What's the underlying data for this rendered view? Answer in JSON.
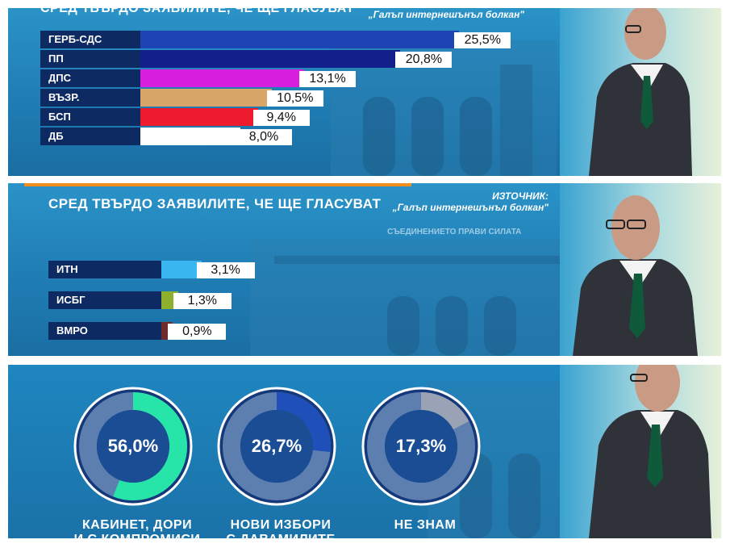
{
  "panel1": {
    "header": "СРЕД ТВЪРДО ЗАЯВИЛИТЕ, ЧЕ ЩЕ ГЛАСУВАТ",
    "source": "„Галъп интернешънъл болкан\""
  },
  "panel2": {
    "header": "СРЕД ТВЪРДО ЗАЯВИЛИТЕ, ЧЕ ЩЕ ГЛАСУВАТ",
    "source_label": "ИЗТОЧНИК:",
    "source": "„Галъп интернешънъл болкан\"",
    "banner": "СЪЕДИНЕНИЕТО ПРАВИ СИЛАТА"
  },
  "panel3": {
    "items": [
      {
        "value_label": "56,0%",
        "caption": "КАБИНЕТ, ДОРИ",
        "caption2": "И С КОМПРОМИСИ"
      },
      {
        "value_label": "26,7%",
        "caption": "НОВИ ИЗБОРИ",
        "caption2": "С ДАВАМИЛИТЕ"
      },
      {
        "value_label": "17,3%",
        "caption": "НЕ ЗНАМ",
        "caption2": ""
      }
    ]
  },
  "chart_data": [
    {
      "type": "bar",
      "categories": [
        "ГЕРБ-СДС",
        "ПП",
        "ДПС",
        "ВЪЗР.",
        "БСП",
        "ДБ"
      ],
      "values": [
        25.5,
        20.8,
        13.1,
        10.5,
        9.4,
        8.0
      ],
      "value_labels": [
        "25,5%",
        "20,8%",
        "13,1%",
        "10,5%",
        "9,4%",
        "8,0%"
      ],
      "colors": [
        "#1c44b4",
        "#13208c",
        "#d81fe0",
        "#d9a66a",
        "#ec1b2e",
        "#ffffff"
      ]
    },
    {
      "type": "bar",
      "categories": [
        "ИТН",
        "ИСБГ",
        "ВМРО"
      ],
      "values": [
        3.1,
        1.3,
        0.9
      ],
      "value_labels": [
        "3,1%",
        "1,3%",
        "0,9%"
      ],
      "colors": [
        "#3ab6f0",
        "#8fb02c",
        "#6e2b2b"
      ]
    },
    {
      "type": "pie",
      "categories": [
        "КАБИНЕТ, ДОРИ И С КОМПРОМИСИ",
        "НОВИ ИЗБОРИ С ДАВАМИЛИТЕ",
        "НЕ ЗНАМ"
      ],
      "values": [
        56.0,
        26.7,
        17.3
      ],
      "colors": [
        "#27e4a9",
        "#1f4fb8",
        "#9aa3b5"
      ]
    }
  ]
}
